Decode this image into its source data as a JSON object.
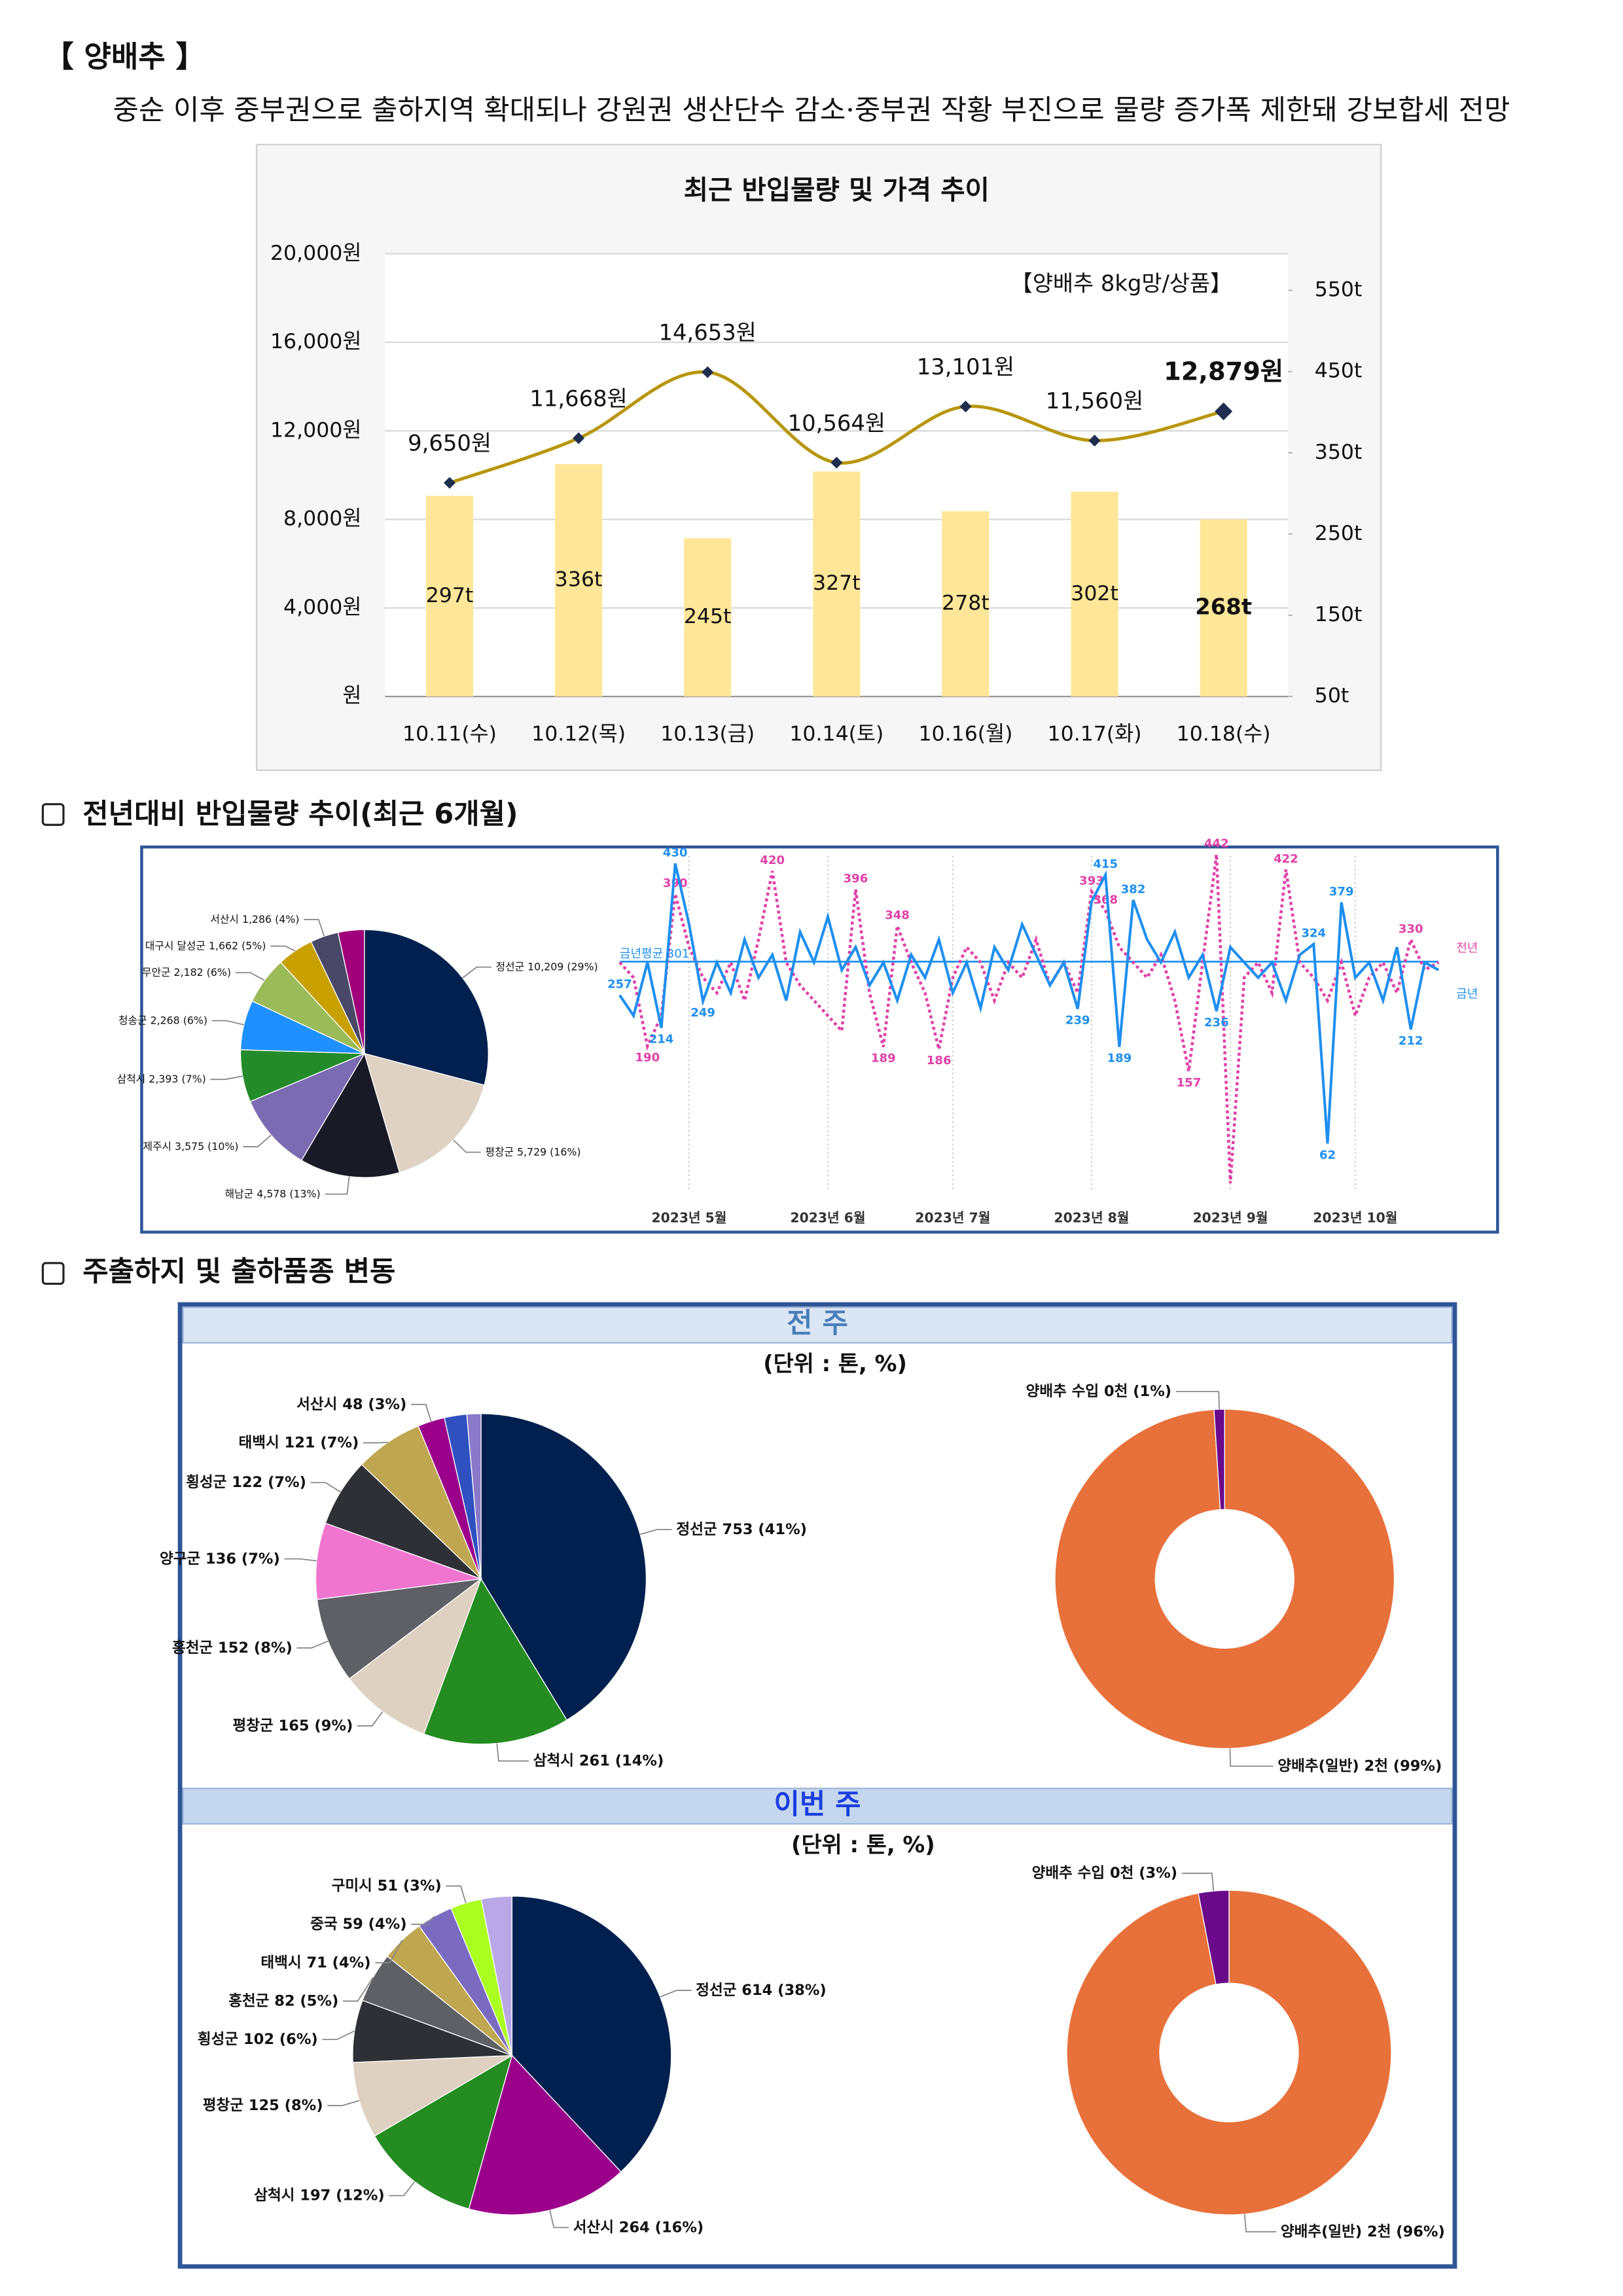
{
  "header": {
    "title": "【 양배추 】",
    "summary": "중순 이후 중부권으로 출하지역 확대되나 강원권 생산단수 감소·중부권 작황 부진으로 물량 증가폭 제한돼 강보합세 전망"
  },
  "sections": [
    "전년대비 반입물량 추이(최근 6개월)",
    "주출하지 및 출하품종 변동"
  ],
  "panels": [
    {
      "title": "전 주",
      "unit": "(단위 : 톤, %)"
    },
    {
      "title": "이번 주",
      "unit": "(단위 : 톤, %)"
    }
  ],
  "chart_data": [
    {
      "type": "combo",
      "title": "최근 반입물량 및 가격 추이",
      "annotation": "【양배추 8kg망/상품】",
      "categories": [
        "10.11(수)",
        "10.12(목)",
        "10.13(금)",
        "10.14(토)",
        "10.16(월)",
        "10.17(화)",
        "10.18(수)"
      ],
      "series": [
        {
          "type": "bar",
          "axis": "y2",
          "color": "#ffe699",
          "values": [
            297,
            336,
            245,
            327,
            278,
            302,
            268
          ],
          "value_labels": [
            "297t",
            "336t",
            "245t",
            "327t",
            "278t",
            "302t",
            "268t"
          ]
        },
        {
          "type": "line",
          "color": "#b8960c",
          "marker_color": "#1f2d50",
          "values": [
            9650,
            11668,
            14653,
            10564,
            13101,
            11560,
            12879
          ],
          "value_labels": [
            "9,650원",
            "11,668원",
            "14,653원",
            "10,564원",
            "13,101원",
            "11,560원",
            "12,879원"
          ]
        }
      ],
      "ylim": [
        0,
        20000
      ],
      "yticks": [
        {
          "value": 0,
          "label": "원"
        },
        {
          "value": 4000,
          "label": "4,000원"
        },
        {
          "value": 8000,
          "label": "8,000원"
        },
        {
          "value": 12000,
          "label": "12,000원"
        },
        {
          "value": 16000,
          "label": "16,000원"
        },
        {
          "value": 20000,
          "label": "20,000원"
        }
      ],
      "y2lim": [
        50,
        595
      ],
      "y2ticks": [
        {
          "value": 50,
          "label": "50t"
        },
        {
          "value": 150,
          "label": "150t"
        },
        {
          "value": 250,
          "label": "250t"
        },
        {
          "value": 350,
          "label": "350t"
        },
        {
          "value": 450,
          "label": "450t"
        },
        {
          "value": 550,
          "label": "550t"
        }
      ],
      "grid": true
    },
    {
      "type": "pie",
      "categories": [
        "정선군",
        "평창군",
        "해남군",
        "제주시",
        "삼척시",
        "청송군",
        "무안군",
        "대구시 달성군",
        "서산시",
        null
      ],
      "values": [
        10209,
        5729,
        4578,
        3575,
        2393,
        2268,
        2182,
        1662,
        1286,
        1200
      ],
      "value_labels": [
        "10,209 (29%)",
        "5,729 (16%)",
        "4,578 (13%)",
        "3,575 (10%)",
        "2,393 (7%)",
        "2,268 (6%)",
        "2,182 (6%)",
        "1,662 (5%)",
        "1,286 (4%)",
        null
      ],
      "colors": [
        "#002050",
        "#ded2c4",
        "#1a1a26",
        "#7b6bb2",
        "#238b2a",
        "#1e90ff",
        "#9bbb59",
        "#c8a000",
        "#4a4868",
        "#a0007a"
      ]
    },
    {
      "type": "line",
      "categories": [
        null,
        null,
        null,
        null,
        null,
        "2023년 5월",
        null,
        null,
        null,
        null,
        null,
        null,
        null,
        null,
        null,
        "2023년 6월",
        null,
        null,
        null,
        null,
        null,
        null,
        null,
        null,
        "2023년 7월",
        null,
        null,
        null,
        null,
        null,
        null,
        null,
        null,
        null,
        "2023년 8월",
        null,
        null,
        null,
        null,
        null,
        null,
        null,
        null,
        null,
        "2023년 9월",
        null,
        null,
        null,
        null,
        null,
        null,
        null,
        null,
        "2023년 10월",
        null,
        null,
        null,
        null,
        null,
        null
      ],
      "series": [
        {
          "name": "전년",
          "color": "#e040a8",
          "dashed": true,
          "values": [
            300,
            280,
            190,
            230,
            390,
            320,
            280,
            260,
            300,
            250,
            330,
            420,
            300,
            270,
            250,
            230,
            210,
            396,
            260,
            189,
            348,
            300,
            260,
            186,
            280,
            320,
            300,
            250,
            300,
            280,
            330,
            270,
            300,
            260,
            393,
            368,
            320,
            300,
            280,
            310,
            250,
            157,
            300,
            442,
            10,
            280,
            300,
            260,
            422,
            300,
            280,
            250,
            300,
            230,
            280,
            300,
            260,
            330,
            290,
            300
          ],
          "value_labels": [
            null,
            null,
            "190",
            null,
            "390",
            null,
            null,
            null,
            null,
            null,
            null,
            "420",
            null,
            null,
            null,
            null,
            null,
            "396",
            null,
            "189",
            "348",
            null,
            null,
            "186",
            null,
            null,
            null,
            null,
            null,
            null,
            null,
            null,
            null,
            null,
            "393",
            "368",
            null,
            null,
            null,
            null,
            null,
            "157",
            null,
            "442",
            null,
            null,
            null,
            null,
            "422",
            null,
            null,
            null,
            null,
            null,
            null,
            null,
            null,
            "330",
            null,
            null
          ]
        },
        {
          "name": "금년",
          "color": "#1e8fef",
          "dashed": false,
          "values": [
            257,
            230,
            300,
            214,
            430,
            350,
            249,
            300,
            260,
            330,
            280,
            310,
            250,
            340,
            300,
            360,
            290,
            320,
            270,
            300,
            250,
            310,
            280,
            330,
            260,
            300,
            240,
            320,
            290,
            350,
            310,
            270,
            300,
            239,
            380,
            415,
            189,
            382,
            330,
            300,
            340,
            280,
            310,
            236,
            320,
            300,
            280,
            300,
            250,
            310,
            324,
            62,
            379,
            280,
            300,
            250,
            320,
            212,
            300,
            290
          ],
          "value_labels": [
            "257",
            null,
            null,
            "214",
            "430",
            null,
            "249",
            null,
            null,
            null,
            null,
            null,
            null,
            null,
            null,
            null,
            null,
            null,
            null,
            null,
            null,
            null,
            null,
            null,
            null,
            null,
            null,
            null,
            null,
            null,
            null,
            null,
            null,
            "239",
            null,
            "415",
            "189",
            "382",
            null,
            null,
            null,
            null,
            null,
            "236",
            null,
            null,
            null,
            null,
            null,
            null,
            "324",
            "62",
            "379",
            null,
            null,
            null,
            null,
            "212",
            null,
            null
          ]
        }
      ],
      "annotations": [
        {
          "text": "금년평균 301",
          "value": 301,
          "color": "#1e8fef"
        }
      ],
      "ylim": [
        0,
        440
      ],
      "legend": "right",
      "grid": true
    },
    {
      "type": "pie",
      "categories": [
        "정선군",
        "삼척시",
        "평창군",
        "홍천군",
        "양구군",
        "횡성군",
        "태백시",
        "서산시",
        null,
        null
      ],
      "values": [
        753,
        261,
        165,
        152,
        136,
        122,
        121,
        48,
        40,
        25
      ],
      "value_labels": [
        "753 (41%)",
        "261 (14%)",
        "165 (9%)",
        "152 (8%)",
        "136 (7%)",
        "122 (7%)",
        "121 (7%)",
        "48 (3%)",
        null,
        null
      ],
      "colors": [
        "#00204f",
        "#248c21",
        "#dfd1c1",
        "#5f6066",
        "#f075cf",
        "#2f3035",
        "#bfa650",
        "#9b008a",
        "#3050c0",
        "#8a78c8"
      ]
    },
    {
      "type": "donut",
      "categories": [
        "양배추(일반)",
        "양배추 수입"
      ],
      "values": [
        99,
        1
      ],
      "value_labels": [
        "2천 (99%)",
        "0천 (1%)"
      ],
      "colors": [
        "#e8703a",
        "#6a0a8a"
      ]
    },
    {
      "type": "pie",
      "categories": [
        "정선군",
        "서산시",
        "삼척시",
        "평창군",
        "횡성군",
        "홍천군",
        "태백시",
        "중국",
        "구미시",
        null
      ],
      "values": [
        614,
        264,
        197,
        125,
        102,
        82,
        71,
        59,
        51,
        50
      ],
      "value_labels": [
        "614 (38%)",
        "264 (16%)",
        "197 (12%)",
        "125 (8%)",
        "102 (6%)",
        "82 (5%)",
        "71 (4%)",
        "59 (4%)",
        "51 (3%)",
        null
      ],
      "colors": [
        "#00204f",
        "#9b008a",
        "#248c21",
        "#dfd1c1",
        "#2f3035",
        "#5f6066",
        "#bfa650",
        "#7b6bc0",
        "#aaff20",
        "#b8a8e8"
      ]
    },
    {
      "type": "donut",
      "categories": [
        "양배추(일반)",
        "양배추 수입"
      ],
      "values": [
        96,
        3
      ],
      "value_labels": [
        "2천 (96%)",
        "0천 (3%)"
      ],
      "colors": [
        "#e8703a",
        "#6a0a8a"
      ]
    }
  ]
}
